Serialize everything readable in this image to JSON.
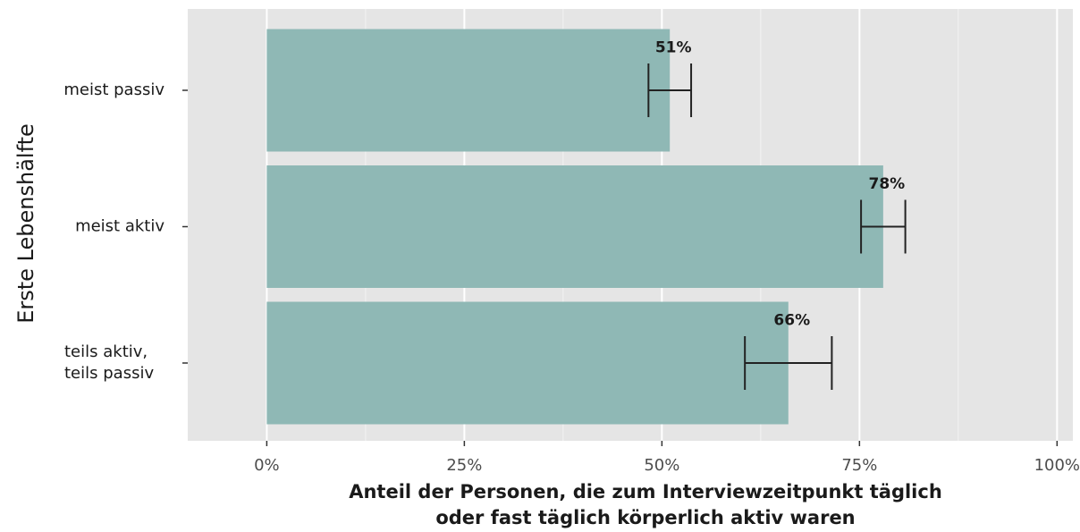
{
  "chart_data": {
    "type": "bar",
    "orientation": "horizontal",
    "ylabel": "Erste Lebenshälfte",
    "xlabel": [
      "Anteil der Personen, die zum Interviewzeitpunkt täglich",
      "oder fast täglich körperlich aktiv waren"
    ],
    "categories": [
      "meist passiv",
      "meist aktiv",
      "teils aktiv,\nteils passiv"
    ],
    "values": [
      51,
      78,
      66
    ],
    "value_labels": [
      "51%",
      "78%",
      "66%"
    ],
    "errors": [
      2.7,
      2.8,
      5.5
    ],
    "color": "#8fb8b5",
    "xlim": [
      -10,
      102
    ],
    "xticks": [
      {
        "value": 0,
        "label": "0%"
      },
      {
        "value": 25,
        "label": "25%"
      },
      {
        "value": 50,
        "label": "50%"
      },
      {
        "value": 75,
        "label": "75%"
      },
      {
        "value": 100,
        "label": "100%"
      }
    ],
    "grid": true
  }
}
